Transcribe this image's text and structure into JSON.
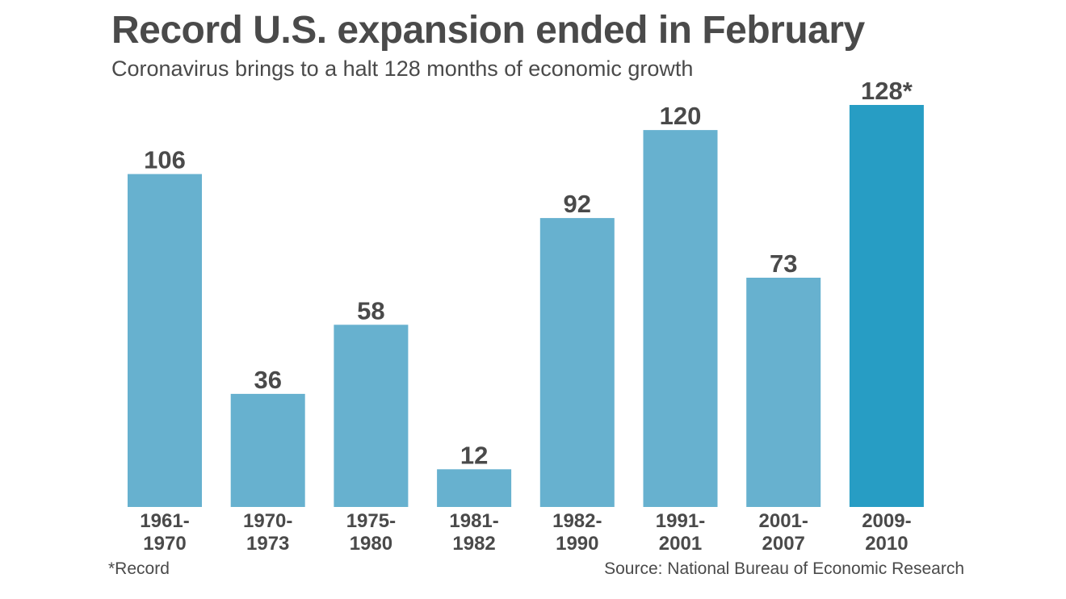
{
  "colors": {
    "bar": "#67b1cf",
    "highlight_bar": "#279dc4",
    "text": "#4a4a4a"
  },
  "chart_data": {
    "type": "bar",
    "title": "Record U.S. expansion ended in February",
    "subtitle": "Coronavirus brings to a halt 128 months of economic growth",
    "xlabel": "",
    "ylabel": "",
    "ylim": [
      0,
      128
    ],
    "grid": false,
    "categories": [
      [
        "1961-",
        "1970"
      ],
      [
        "1970-",
        "1973"
      ],
      [
        "1975-",
        "1980"
      ],
      [
        "1981-",
        "1982"
      ],
      [
        "1982-",
        "1990"
      ],
      [
        "1991-",
        "2001"
      ],
      [
        "2001-",
        "2007"
      ],
      [
        "2009-",
        "2010"
      ]
    ],
    "values": [
      106,
      36,
      58,
      12,
      92,
      120,
      73,
      128
    ],
    "value_labels": [
      "106",
      "36",
      "58",
      "12",
      "92",
      "120",
      "73",
      "128*"
    ],
    "highlight_index": 7,
    "footnote": "*Record",
    "source": "Source: National Bureau of Economic Research"
  }
}
